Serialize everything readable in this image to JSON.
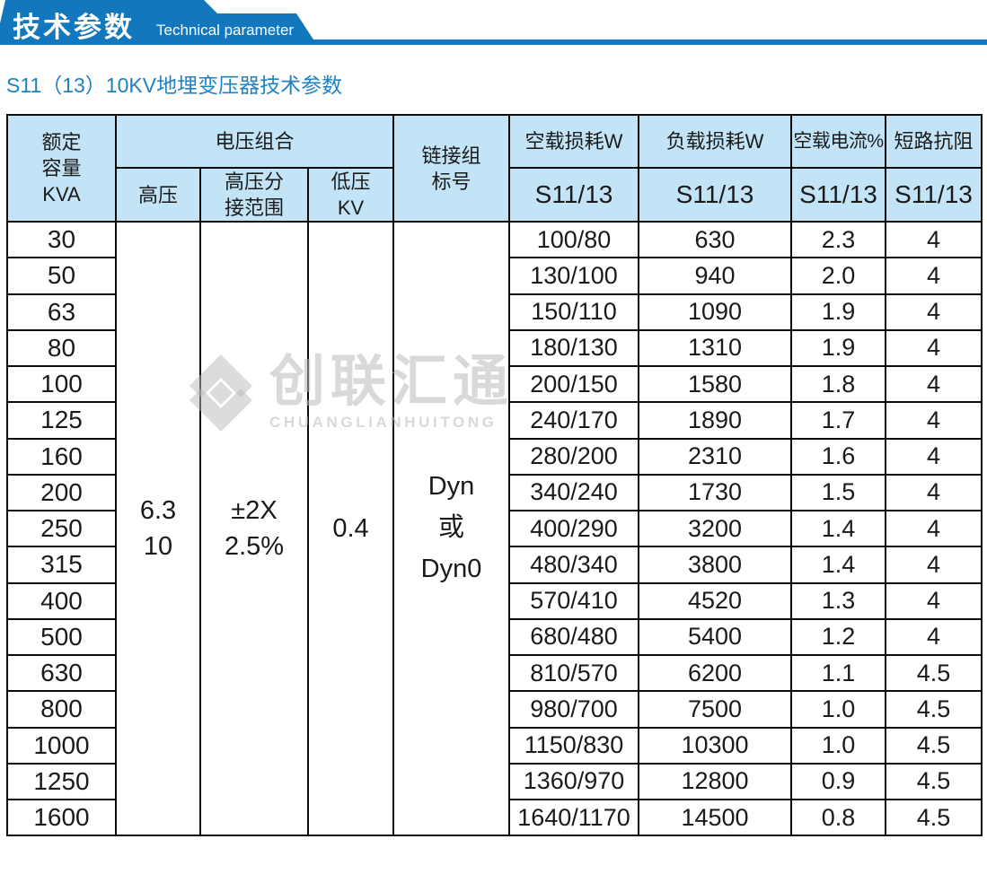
{
  "banner": {
    "title_cn": "技术参数",
    "title_en": "Technical parameter"
  },
  "heading": "S11（13）10KV地埋变压器技术参数",
  "watermark": {
    "cn": "创联汇通",
    "en": "CHUANGLIANHUITONG"
  },
  "colors": {
    "banner_blue": "#1277bd",
    "header_bg": "#c2e4f6",
    "heading_blue": "#1e82c4",
    "watermark_gray": "#dcdcdc"
  },
  "table": {
    "headers": {
      "capacity": "额定\n容量\nKVA",
      "voltage_group": "电压组合",
      "hv": "高压",
      "hv_tap": "高压分\n接范围",
      "lv": "低压\nKV",
      "connection": "链接组\n标号",
      "noload_loss": "空载损耗W",
      "load_loss": "负载损耗W",
      "noload_current": "空载电流%",
      "impedance": "短路抗阻",
      "model": "S11/13"
    },
    "shared": {
      "hv": "6.3\n10",
      "hv_tap": "±2X\n2.5%",
      "lv": "0.4",
      "connection": "Dyn\n或\nDyn0"
    },
    "rows": [
      [
        "30",
        "100/80",
        "630",
        "2.3",
        "4"
      ],
      [
        "50",
        "130/100",
        "940",
        "2.0",
        "4"
      ],
      [
        "63",
        "150/110",
        "1090",
        "1.9",
        "4"
      ],
      [
        "80",
        "180/130",
        "1310",
        "1.9",
        "4"
      ],
      [
        "100",
        "200/150",
        "1580",
        "1.8",
        "4"
      ],
      [
        "125",
        "240/170",
        "1890",
        "1.7",
        "4"
      ],
      [
        "160",
        "280/200",
        "2310",
        "1.6",
        "4"
      ],
      [
        "200",
        "340/240",
        "1730",
        "1.5",
        "4"
      ],
      [
        "250",
        "400/290",
        "3200",
        "1.4",
        "4"
      ],
      [
        "315",
        "480/340",
        "3800",
        "1.4",
        "4"
      ],
      [
        "400",
        "570/410",
        "4520",
        "1.3",
        "4"
      ],
      [
        "500",
        "680/480",
        "5400",
        "1.2",
        "4"
      ],
      [
        "630",
        "810/570",
        "6200",
        "1.1",
        "4.5"
      ],
      [
        "800",
        "980/700",
        "7500",
        "1.0",
        "4.5"
      ],
      [
        "1000",
        "1150/830",
        "10300",
        "1.0",
        "4.5"
      ],
      [
        "1250",
        "1360/970",
        "12800",
        "0.9",
        "4.5"
      ],
      [
        "1600",
        "1640/1170",
        "14500",
        "0.8",
        "4.5"
      ]
    ]
  }
}
